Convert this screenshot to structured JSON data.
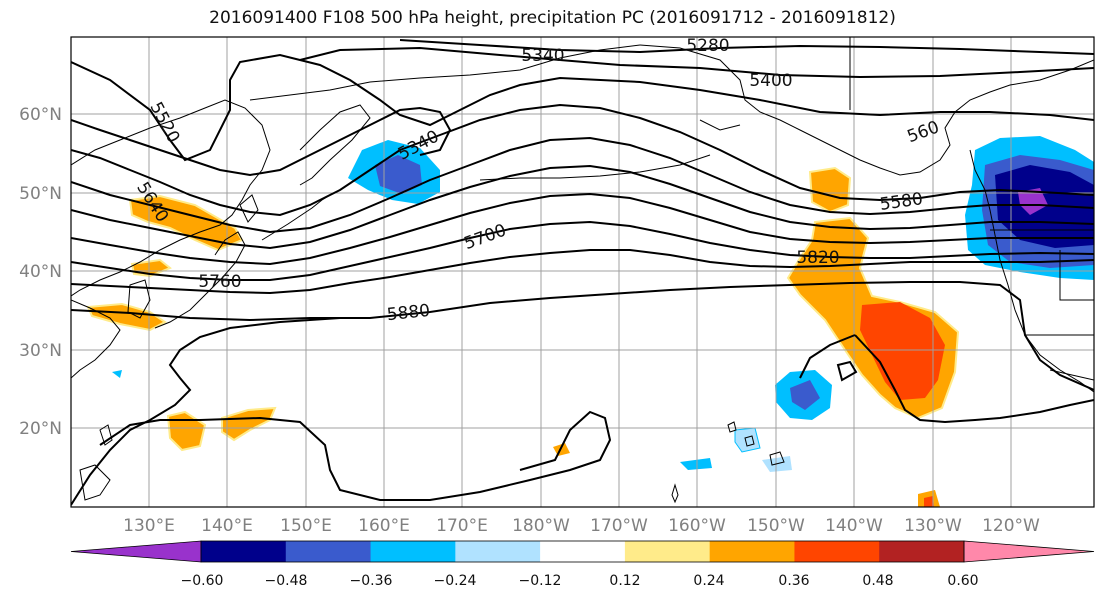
{
  "title": "2016091400 F108 500 hPa height, precipitation PC (2016091712 - 2016091812)",
  "lat_labels": [
    "60°N",
    "50°N",
    "40°N",
    "30°N",
    "20°N"
  ],
  "lon_labels": [
    "130°E",
    "140°E",
    "150°E",
    "160°E",
    "170°E",
    "180°W",
    "170°W",
    "160°W",
    "150°W",
    "140°W",
    "130°W",
    "120°W"
  ],
  "contour_labels": [
    "5280",
    "5340",
    "5400",
    "5520",
    "5340",
    "5640",
    "5700",
    "5580",
    "5820",
    "5760",
    "5880",
    "560"
  ],
  "colorbar": {
    "colors": [
      "#9932cc",
      "#00008b",
      "#3a5bcd",
      "#00bfff",
      "#b0e2ff",
      "#ffffff",
      "#ffeb8a",
      "#ffa500",
      "#ff4500",
      "#b22222",
      "#ff88aa"
    ],
    "tick_labels": [
      "−0.60",
      "−0.48",
      "−0.36",
      "−0.24",
      "−0.12",
      "0.12",
      "0.24",
      "0.36",
      "0.48",
      "0.60"
    ]
  }
}
